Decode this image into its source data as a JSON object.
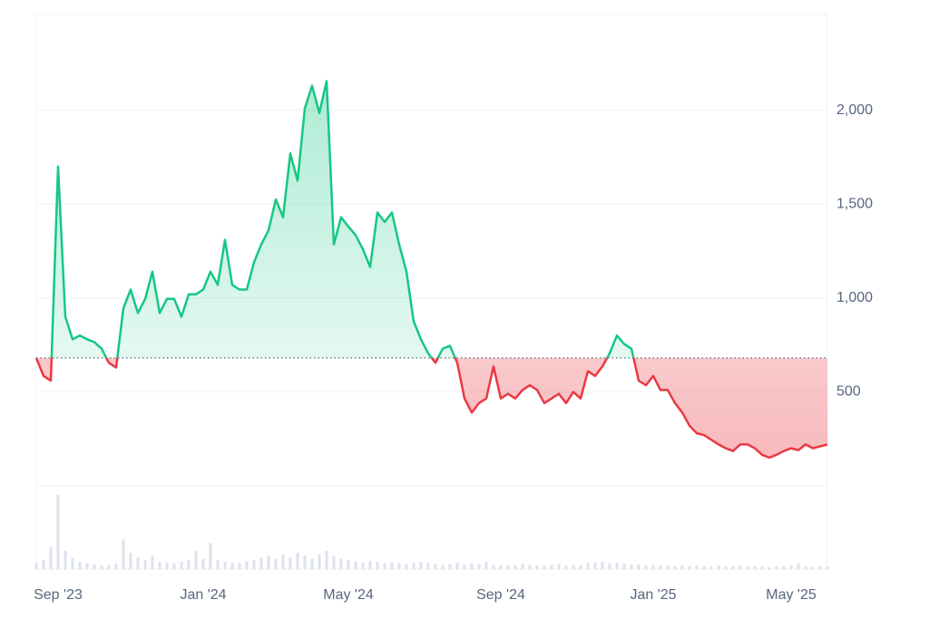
{
  "chart_data": {
    "type": "line",
    "categories": [
      null,
      null,
      null,
      "Sep '23",
      null,
      null,
      null,
      null,
      null,
      null,
      null,
      null,
      null,
      null,
      null,
      null,
      null,
      null,
      null,
      null,
      null,
      null,
      null,
      "Jan '24",
      null,
      null,
      null,
      null,
      null,
      null,
      null,
      null,
      null,
      null,
      null,
      null,
      null,
      null,
      null,
      null,
      null,
      null,
      null,
      "May '24",
      null,
      null,
      null,
      null,
      null,
      null,
      null,
      null,
      null,
      null,
      null,
      null,
      null,
      null,
      null,
      null,
      null,
      null,
      null,
      null,
      "Sep '24",
      null,
      null,
      null,
      null,
      null,
      null,
      null,
      null,
      null,
      null,
      null,
      null,
      null,
      null,
      null,
      null,
      null,
      null,
      null,
      null,
      "Jan '25",
      null,
      null,
      null,
      null,
      null,
      null,
      null,
      null,
      null,
      null,
      null,
      null,
      null,
      null,
      null,
      null,
      null,
      null,
      "May '25",
      null,
      null,
      null,
      null,
      null
    ],
    "values": [
      680,
      585,
      560,
      1700,
      900,
      780,
      800,
      780,
      765,
      730,
      655,
      630,
      945,
      1045,
      920,
      995,
      1140,
      920,
      995,
      995,
      900,
      1020,
      1020,
      1045,
      1140,
      1070,
      1310,
      1070,
      1045,
      1045,
      1190,
      1285,
      1360,
      1525,
      1430,
      1770,
      1625,
      2010,
      2130,
      1985,
      2155,
      1285,
      1430,
      1380,
      1335,
      1260,
      1165,
      1455,
      1405,
      1455,
      1285,
      1140,
      875,
      780,
      705,
      655,
      730,
      745,
      655,
      465,
      390,
      440,
      465,
      635,
      465,
      490,
      465,
      510,
      535,
      510,
      440,
      465,
      490,
      440,
      500,
      465,
      610,
      585,
      635,
      705,
      800,
      755,
      730,
      560,
      535,
      585,
      510,
      510,
      440,
      390,
      320,
      280,
      270,
      245,
      220,
      200,
      185,
      220,
      220,
      200,
      165,
      150,
      165,
      185,
      200,
      190,
      220,
      200,
      210,
      220
    ],
    "volume": [
      8,
      12,
      30,
      100,
      25,
      15,
      10,
      8,
      6,
      5,
      6,
      7,
      40,
      22,
      15,
      12,
      18,
      10,
      9,
      8,
      10,
      12,
      25,
      14,
      35,
      12,
      10,
      9,
      8,
      11,
      12,
      15,
      18,
      14,
      20,
      16,
      22,
      18,
      14,
      20,
      25,
      18,
      14,
      12,
      10,
      9,
      11,
      10,
      8,
      9,
      8,
      7,
      9,
      10,
      8,
      7,
      6,
      7,
      9,
      6,
      8,
      7,
      10,
      6,
      5,
      6,
      5,
      7,
      6,
      5,
      5,
      6,
      7,
      5,
      6,
      5,
      8,
      9,
      10,
      8,
      9,
      7,
      6,
      6,
      5,
      6,
      5,
      5,
      4,
      5,
      4,
      5,
      4,
      4,
      5,
      4,
      4,
      5,
      4,
      4,
      4,
      3,
      4,
      4,
      5,
      8,
      4,
      3,
      4,
      3
    ],
    "baseline": 681,
    "up_color": "#16c784",
    "down_color": "#ea3943",
    "ylim": [
      0,
      2500
    ],
    "yticks": [
      500,
      {
        "value": 1000,
        "label": "1,000"
      },
      {
        "value": 1500,
        "label": "1,500"
      },
      {
        "value": 2000,
        "label": "2,000"
      }
    ],
    "grid": true
  }
}
